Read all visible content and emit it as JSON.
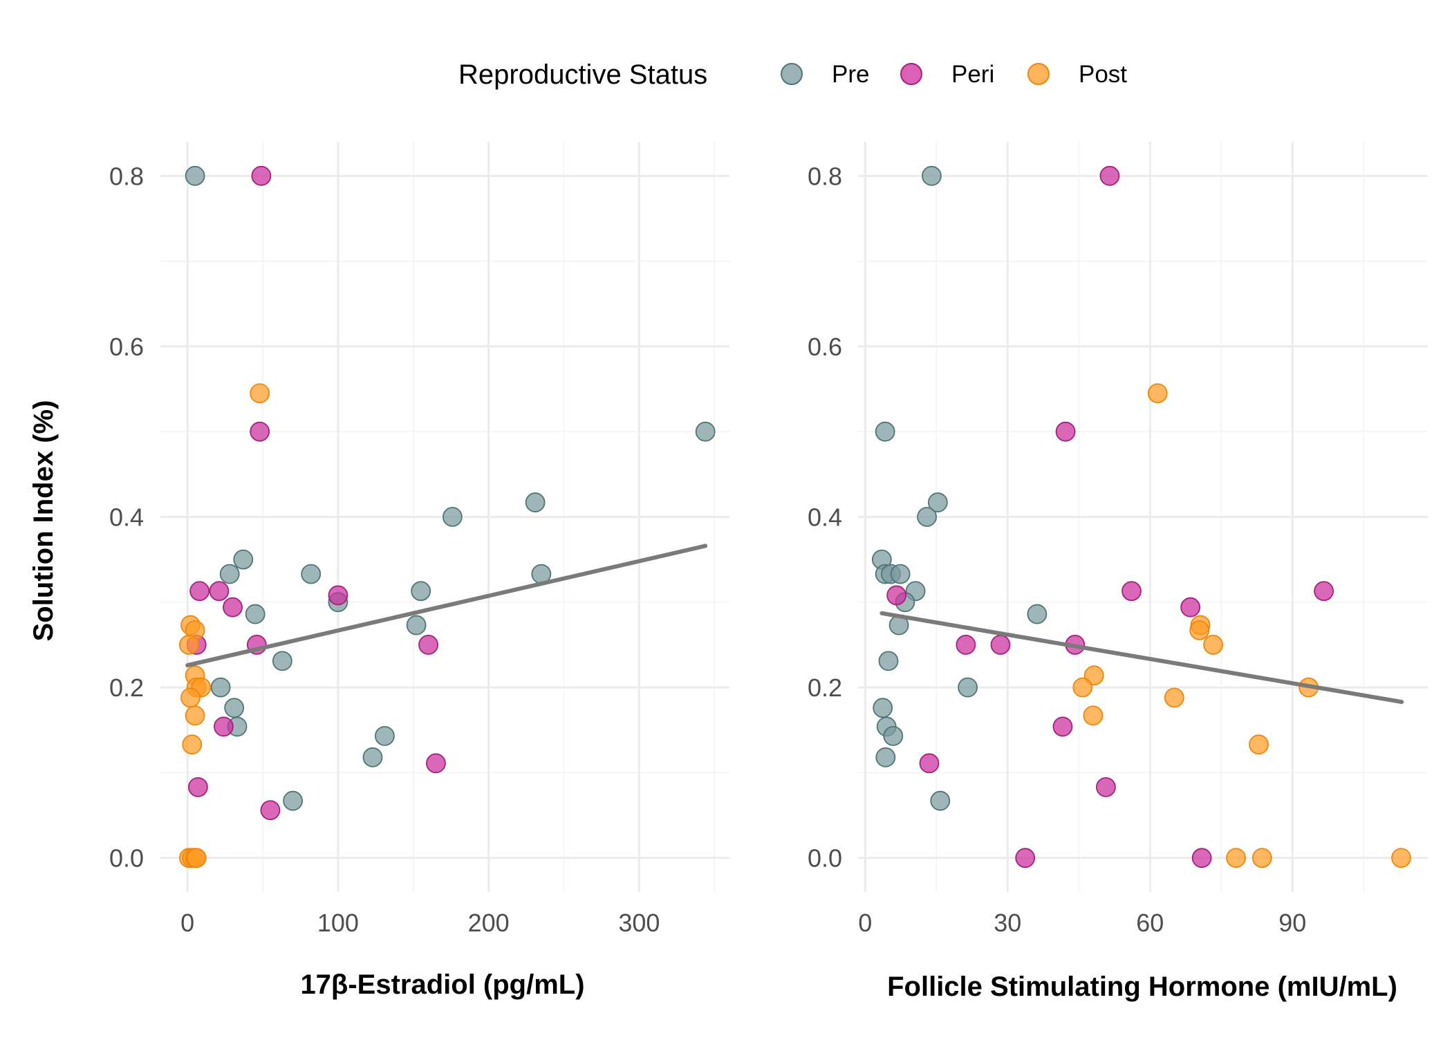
{
  "legend": {
    "title": "Reproductive Status",
    "items": [
      {
        "key": "Pre",
        "label": "Pre",
        "fill": "#7A9A9E",
        "stroke": "#4F7478"
      },
      {
        "key": "Peri",
        "label": "Peri",
        "fill": "#CC2E9E",
        "stroke": "#A51F7E"
      },
      {
        "key": "Post",
        "label": "Post",
        "fill": "#FF9B26",
        "stroke": "#F0860A"
      }
    ]
  },
  "y_axis": {
    "label": "Solution Index (%)",
    "ylim": [
      -0.04,
      0.84
    ],
    "ticks": [
      0.0,
      0.2,
      0.4,
      0.6,
      0.8
    ],
    "tick_labels": [
      "0.0",
      "0.2",
      "0.4",
      "0.6",
      "0.8"
    ]
  },
  "chart_data": [
    {
      "type": "scatter",
      "xlabel": "17β-Estradiol (pg/mL)",
      "ylabel": "Solution Index (%)",
      "xlim": [
        -18,
        360
      ],
      "ylim": [
        -0.04,
        0.84
      ],
      "x_ticks": [
        0,
        100,
        200,
        300
      ],
      "x_tick_labels": [
        "0",
        "100",
        "200",
        "300"
      ],
      "grid": true,
      "trend_line": {
        "x": [
          0,
          344
        ],
        "y": [
          0.226,
          0.366
        ],
        "color": "#7a7a7a"
      },
      "series": [
        {
          "name": "Pre",
          "points": [
            [
              5,
              0.8
            ],
            [
              344,
              0.5
            ],
            [
              231,
              0.417
            ],
            [
              176,
              0.4
            ],
            [
              37,
              0.35
            ],
            [
              28,
              0.333
            ],
            [
              82,
              0.333
            ],
            [
              235,
              0.333
            ],
            [
              155,
              0.313
            ],
            [
              100,
              0.3
            ],
            [
              45,
              0.286
            ],
            [
              152,
              0.273
            ],
            [
              63,
              0.231
            ],
            [
              22,
              0.2
            ],
            [
              31,
              0.176
            ],
            [
              33,
              0.154
            ],
            [
              131,
              0.143
            ],
            [
              123,
              0.118
            ],
            [
              70,
              0.067
            ]
          ]
        },
        {
          "name": "Peri",
          "points": [
            [
              49,
              0.8
            ],
            [
              48,
              0.5
            ],
            [
              8,
              0.313
            ],
            [
              21,
              0.313
            ],
            [
              100,
              0.308
            ],
            [
              30,
              0.294
            ],
            [
              6,
              0.25
            ],
            [
              46,
              0.25
            ],
            [
              160,
              0.25
            ],
            [
              24,
              0.154
            ],
            [
              165,
              0.111
            ],
            [
              7,
              0.083
            ],
            [
              55,
              0.056
            ]
          ]
        },
        {
          "name": "Post",
          "points": [
            [
              48,
              0.545
            ],
            [
              2,
              0.273
            ],
            [
              5,
              0.267
            ],
            [
              1,
              0.25
            ],
            [
              5,
              0.214
            ],
            [
              6,
              0.2
            ],
            [
              9,
              0.2
            ],
            [
              2,
              0.188
            ],
            [
              5,
              0.167
            ],
            [
              3,
              0.133
            ],
            [
              1,
              0.0
            ],
            [
              3,
              0.0
            ],
            [
              5,
              0.0
            ],
            [
              6,
              0.0
            ]
          ]
        }
      ]
    },
    {
      "type": "scatter",
      "xlabel": "Follicle Stimulating Hormone (mIU/mL)",
      "ylabel": "",
      "xlim": [
        -1.5,
        118.5
      ],
      "ylim": [
        -0.04,
        0.84
      ],
      "x_ticks": [
        0,
        30,
        60,
        90
      ],
      "x_tick_labels": [
        "0",
        "30",
        "60",
        "90"
      ],
      "grid": true,
      "trend_line": {
        "x": [
          3.5,
          113
        ],
        "y": [
          0.287,
          0.183
        ],
        "color": "#7a7a7a"
      },
      "series": [
        {
          "name": "Pre",
          "points": [
            [
              14,
              0.8
            ],
            [
              4.2,
              0.5
            ],
            [
              15.3,
              0.417
            ],
            [
              13,
              0.4
            ],
            [
              3.5,
              0.35
            ],
            [
              4.2,
              0.333
            ],
            [
              5.4,
              0.333
            ],
            [
              7.4,
              0.333
            ],
            [
              10.6,
              0.313
            ],
            [
              8.4,
              0.3
            ],
            [
              36.2,
              0.286
            ],
            [
              7.1,
              0.273
            ],
            [
              4.9,
              0.231
            ],
            [
              21.6,
              0.2
            ],
            [
              3.7,
              0.176
            ],
            [
              4.5,
              0.154
            ],
            [
              5.9,
              0.143
            ],
            [
              4.3,
              0.118
            ],
            [
              15.8,
              0.067
            ]
          ]
        },
        {
          "name": "Peri",
          "points": [
            [
              51.5,
              0.8
            ],
            [
              42.2,
              0.5
            ],
            [
              56.1,
              0.313
            ],
            [
              96.6,
              0.313
            ],
            [
              6.6,
              0.308
            ],
            [
              68.5,
              0.294
            ],
            [
              21.2,
              0.25
            ],
            [
              28.5,
              0.25
            ],
            [
              44.2,
              0.25
            ],
            [
              41.6,
              0.154
            ],
            [
              13.5,
              0.111
            ],
            [
              50.7,
              0.083
            ],
            [
              33.7,
              0.0
            ],
            [
              70.9,
              0.0
            ]
          ]
        },
        {
          "name": "Post",
          "points": [
            [
              61.6,
              0.545
            ],
            [
              70.6,
              0.273
            ],
            [
              70.4,
              0.267
            ],
            [
              73.3,
              0.25
            ],
            [
              48.2,
              0.214
            ],
            [
              45.8,
              0.2
            ],
            [
              93.4,
              0.2
            ],
            [
              65.1,
              0.188
            ],
            [
              48,
              0.167
            ],
            [
              82.9,
              0.133
            ],
            [
              78.1,
              0.0
            ],
            [
              83.6,
              0.0
            ],
            [
              112.9,
              0.0
            ]
          ]
        }
      ]
    }
  ]
}
